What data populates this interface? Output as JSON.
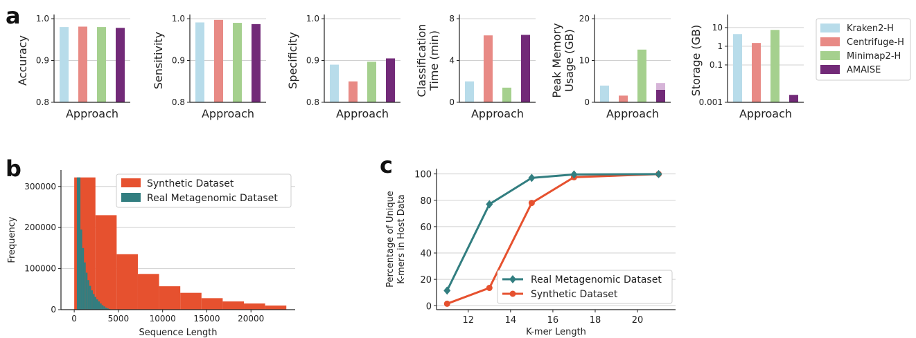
{
  "panel_labels": [
    "a",
    "b",
    "c"
  ],
  "colors": {
    "Kraken2-H": "#b8dcea",
    "Centrifuge-H": "#e88a85",
    "Minimap2-H": "#a5d08e",
    "AMAISE": "#722a78",
    "AMAISE_light": "#d6b4d8",
    "synthetic": "#e6512f",
    "real": "#327e80"
  },
  "chart_data": [
    {
      "type": "bar",
      "panel": "a",
      "categories": [
        "Kraken2-H",
        "Centrifuge-H",
        "Minimap2-H",
        "AMAISE"
      ],
      "values": [
        0.98,
        0.981,
        0.98,
        0.978
      ],
      "xlabel": "Approach",
      "ylabel": [
        "Accuracy"
      ],
      "ylim": [
        0.8,
        1.0
      ],
      "yticks": [
        0.8,
        0.9,
        1.0
      ],
      "yticklabels": [
        "0.8",
        "0.9",
        "1.0"
      ]
    },
    {
      "type": "bar",
      "panel": "a",
      "categories": [
        "Kraken2-H",
        "Centrifuge-H",
        "Minimap2-H",
        "AMAISE"
      ],
      "values": [
        0.991,
        0.997,
        0.99,
        0.987
      ],
      "xlabel": "Approach",
      "ylabel": [
        "Sensitivity"
      ],
      "ylim": [
        0.8,
        1.0
      ],
      "yticks": [
        0.8,
        0.9,
        1.0
      ],
      "yticklabels": [
        "0.8",
        "0.9",
        "1.0"
      ]
    },
    {
      "type": "bar",
      "panel": "a",
      "categories": [
        "Kraken2-H",
        "Centrifuge-H",
        "Minimap2-H",
        "AMAISE"
      ],
      "values": [
        0.89,
        0.85,
        0.897,
        0.905
      ],
      "xlabel": "Approach",
      "ylabel": [
        "Specificity"
      ],
      "ylim": [
        0.8,
        1.0
      ],
      "yticks": [
        0.8,
        0.9,
        1.0
      ],
      "yticklabels": [
        "0.8",
        "0.9",
        "1.0"
      ]
    },
    {
      "type": "bar",
      "panel": "a",
      "categories": [
        "Kraken2-H",
        "Centrifuge-H",
        "Minimap2-H",
        "AMAISE"
      ],
      "values": [
        2.0,
        6.4,
        1.4,
        6.45
      ],
      "xlabel": "Approach",
      "ylabel": [
        "Classification",
        "Time (min)"
      ],
      "ylim": [
        0,
        8
      ],
      "yticks": [
        0,
        4,
        8
      ],
      "yticklabels": [
        "0",
        "4",
        "8"
      ]
    },
    {
      "type": "bar",
      "panel": "a",
      "categories": [
        "Kraken2-H",
        "Centrifuge-H",
        "Minimap2-H",
        "AMAISE"
      ],
      "values": [
        4.0,
        1.6,
        12.6,
        3.0
      ],
      "stacked_extra": [
        0,
        0,
        0,
        1.6
      ],
      "xlabel": "Approach",
      "ylabel": [
        "Peak Memory",
        "Usage (GB)"
      ],
      "ylim": [
        0,
        20
      ],
      "yticks": [
        0,
        10,
        20
      ],
      "yticklabels": [
        "0",
        "10",
        "20"
      ]
    },
    {
      "type": "bar",
      "panel": "a",
      "yscale": "log",
      "categories": [
        "Kraken2-H",
        "Centrifuge-H",
        "Minimap2-H",
        "AMAISE"
      ],
      "values": [
        4.5,
        1.5,
        7.5,
        0.0025
      ],
      "xlabel": "Approach",
      "ylabel": [
        "Storage (GB)"
      ],
      "ylim": [
        0.001,
        30
      ],
      "yticks": [
        0.001,
        0.1,
        1,
        10
      ],
      "yticklabels": [
        "0.001",
        "0.1",
        "1",
        "10"
      ]
    },
    {
      "type": "histogram",
      "panel": "b",
      "xlabel": "Sequence Length",
      "ylabel": "Frequency",
      "xlim": [
        -1500,
        25000
      ],
      "ylim": [
        0,
        340000
      ],
      "xticks": [
        0,
        5000,
        10000,
        15000,
        20000
      ],
      "xticklabels": [
        "0",
        "5000",
        "10000",
        "15000",
        "20000"
      ],
      "yticks": [
        0,
        100000,
        200000,
        300000
      ],
      "yticklabels": [
        "0",
        "100000",
        "200000",
        "300000"
      ],
      "series": [
        {
          "name": "Synthetic Dataset",
          "color": "#e6512f",
          "bins": [
            [
              0,
              2400,
              322000
            ],
            [
              2400,
              4800,
              230000
            ],
            [
              4800,
              7200,
              135000
            ],
            [
              7200,
              9600,
              87000
            ],
            [
              9600,
              12000,
              57000
            ],
            [
              12000,
              14400,
              41000
            ],
            [
              14400,
              16800,
              28000
            ],
            [
              16800,
              19200,
              20000
            ],
            [
              19200,
              21600,
              15000
            ],
            [
              21600,
              24000,
              10000
            ]
          ]
        },
        {
          "name": "Real Metagenomic Dataset",
          "color": "#327e80",
          "bins": [
            [
              300,
              500,
              322000
            ],
            [
              500,
              700,
              322000
            ],
            [
              700,
              900,
              195000
            ],
            [
              900,
              1100,
              150000
            ],
            [
              1100,
              1300,
              115000
            ],
            [
              1300,
              1500,
              90000
            ],
            [
              1500,
              1700,
              72000
            ],
            [
              1700,
              1900,
              58000
            ],
            [
              1900,
              2100,
              47000
            ],
            [
              2100,
              2300,
              38000
            ],
            [
              2300,
              2500,
              31000
            ],
            [
              2500,
              2700,
              25000
            ],
            [
              2700,
              2900,
              20000
            ],
            [
              2900,
              3100,
              15000
            ],
            [
              3100,
              3300,
              11000
            ],
            [
              3300,
              3500,
              8000
            ],
            [
              3500,
              3700,
              5000
            ],
            [
              3700,
              3900,
              3000
            ],
            [
              3900,
              4100,
              1500
            ]
          ]
        }
      ],
      "legend": "top-right"
    },
    {
      "type": "line",
      "panel": "c",
      "xlabel": "K-mer Length",
      "ylabel": [
        "Percentage of Unique",
        "K-mers in Host Data"
      ],
      "xlim": [
        10.5,
        21.8
      ],
      "ylim": [
        -3,
        104
      ],
      "xticks": [
        12,
        14,
        16,
        18,
        20
      ],
      "yticks": [
        0,
        20,
        40,
        60,
        80,
        100
      ],
      "series": [
        {
          "name": "Real Metagenomic Dataset",
          "color": "#327e80",
          "marker": "diamond",
          "x": [
            11,
            13,
            15,
            17,
            21
          ],
          "y": [
            11.5,
            77,
            97,
            99.6,
            99.9
          ]
        },
        {
          "name": "Synthetic Dataset",
          "color": "#e6512f",
          "marker": "circle",
          "x": [
            11,
            13,
            15,
            17,
            21
          ],
          "y": [
            1.5,
            13.5,
            78,
            97.5,
            99.9
          ]
        }
      ],
      "legend": "lower-right"
    }
  ],
  "legend_a": [
    "Kraken2-H",
    "Centrifuge-H",
    "Minimap2-H",
    "AMAISE"
  ]
}
